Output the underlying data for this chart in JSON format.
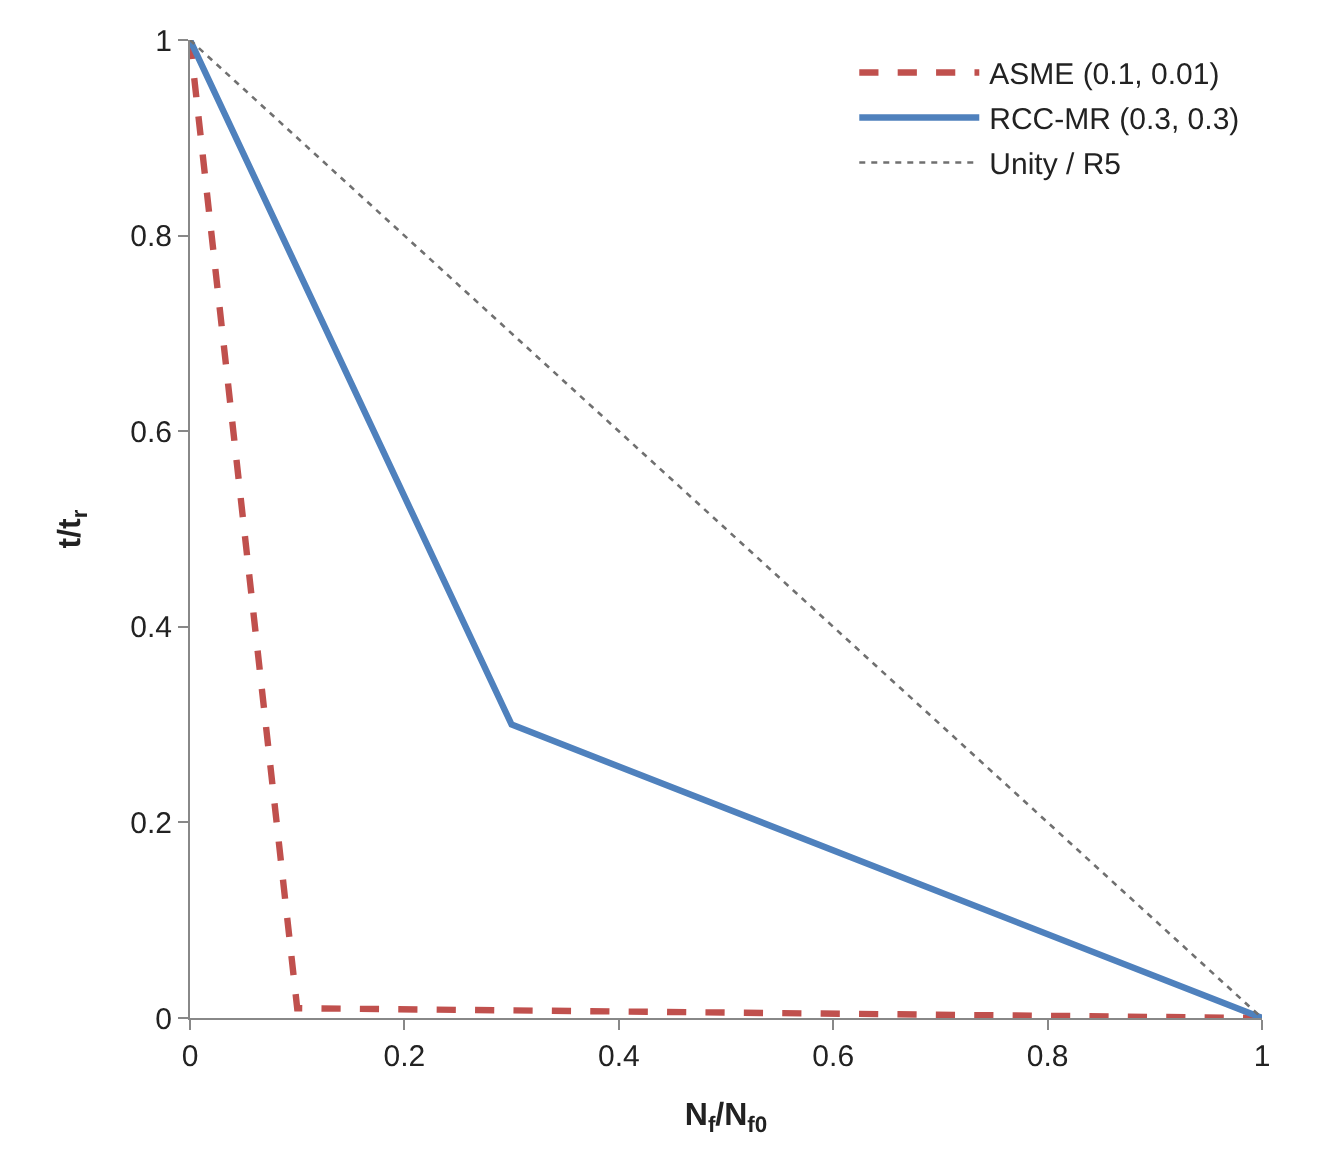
{
  "chart_data": {
    "type": "line",
    "xlabel": "N$_{f}$/N$_{f0}$",
    "ylabel": "t/t$_{r}$",
    "xlim": [
      0,
      1
    ],
    "ylim": [
      0,
      1
    ],
    "xticks": [
      0,
      0.2,
      0.4,
      0.6,
      0.8,
      1
    ],
    "yticks": [
      0,
      0.2,
      0.4,
      0.6,
      0.8,
      1
    ],
    "legend": "top right",
    "marker": "none",
    "series": [
      {
        "name": "ASME (0.1, 0.01)",
        "color": "#c0504d",
        "x": [
          0,
          0.1,
          1
        ],
        "values": [
          1,
          0.01,
          0
        ],
        "line_style": "dashed"
      },
      {
        "name": "RCC-MR (0.3, 0.3)",
        "color": "#4f81bd",
        "x": [
          0,
          0.3,
          1
        ],
        "values": [
          1,
          0.3,
          0
        ],
        "line_style": "solid"
      },
      {
        "name": "Unity / R5",
        "color": "#707070",
        "x": [
          0,
          1
        ],
        "values": [
          1,
          0
        ],
        "line_style": "dotted"
      }
    ]
  }
}
